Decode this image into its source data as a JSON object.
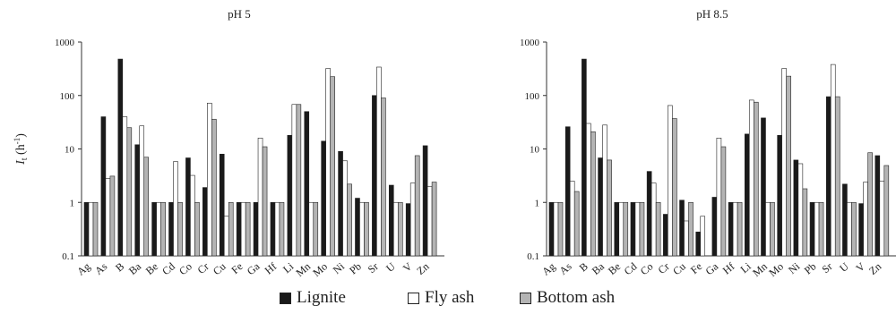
{
  "chart_data": [
    {
      "type": "bar",
      "title": "pH 5",
      "ylabel": "I_t (h⁻¹)",
      "ylabel_parts": {
        "main": "I",
        "sub": "t",
        "unit": " (h",
        "sup": "-1",
        "close": ")"
      },
      "yscale": "log",
      "ylim": [
        0.1,
        1000
      ],
      "yticks": [
        "0.1",
        "1",
        "10",
        "100",
        "1000"
      ],
      "grid": false,
      "categories": [
        "Ag",
        "As",
        "B",
        "Ba",
        "Be",
        "Cd",
        "Co",
        "Cr",
        "Cu",
        "Fe",
        "Ga",
        "Hf",
        "Li",
        "Mn",
        "Mo",
        "Ni",
        "Pb",
        "Sr",
        "U",
        "V",
        "Zn"
      ],
      "series": [
        {
          "name": "Lignite",
          "values": [
            1,
            40,
            480,
            12,
            1,
            1,
            6.8,
            1.9,
            8,
            1,
            1,
            1,
            18,
            50,
            14,
            9,
            1.2,
            100,
            2.1,
            0.95,
            11.5
          ]
        },
        {
          "name": "Fly ash",
          "values": [
            1,
            2.8,
            40,
            27,
            1,
            5.8,
            3.2,
            72,
            0.55,
            1,
            16,
            1,
            68,
            1,
            320,
            6,
            1,
            340,
            1,
            2.3,
            2
          ]
        },
        {
          "name": "Bottom ash",
          "values": [
            1,
            3.1,
            25,
            7,
            1,
            1,
            1,
            36,
            1,
            1,
            11,
            1,
            68,
            1,
            225,
            2.2,
            1,
            90,
            1,
            7.5,
            2.4
          ]
        }
      ]
    },
    {
      "type": "bar",
      "title": "pH 8.5",
      "ylabel": "",
      "yscale": "log",
      "ylim": [
        0.1,
        1000
      ],
      "yticks": [
        "0.1",
        "1",
        "10",
        "100",
        "1000"
      ],
      "grid": false,
      "categories": [
        "Ag",
        "As",
        "B",
        "Ba",
        "Be",
        "Cd",
        "Co",
        "Cr",
        "Cu",
        "Fe",
        "Ga",
        "Hf",
        "Li",
        "Mn",
        "Mo",
        "Ni",
        "Pb",
        "Sr",
        "U",
        "V",
        "Zn"
      ],
      "series": [
        {
          "name": "Lignite",
          "values": [
            1,
            26,
            480,
            6.8,
            1,
            1,
            3.8,
            0.6,
            1.1,
            0.28,
            1.25,
            1,
            19,
            38,
            18,
            6.2,
            1,
            95,
            2.2,
            0.95,
            7.5
          ]
        },
        {
          "name": "Fly ash",
          "values": [
            1,
            2.5,
            30,
            28,
            1,
            1,
            2.3,
            65,
            0.45,
            0.55,
            16,
            1,
            82,
            1,
            320,
            5.3,
            1,
            380,
            1,
            2.4,
            2.5
          ]
        },
        {
          "name": "Bottom ash",
          "values": [
            1,
            1.6,
            21,
            6.2,
            1,
            1,
            1,
            37,
            1,
            0.1,
            11,
            1,
            75,
            1,
            230,
            1.8,
            1,
            95,
            1,
            8.5,
            4.9
          ]
        }
      ]
    }
  ],
  "legend": {
    "items": [
      {
        "label": "Lignite",
        "color": "#1a1a1a"
      },
      {
        "label": "Fly ash",
        "color": "#ffffff"
      },
      {
        "label": "Bottom ash",
        "color": "#b4b4b4"
      }
    ],
    "placement": "bottom"
  }
}
